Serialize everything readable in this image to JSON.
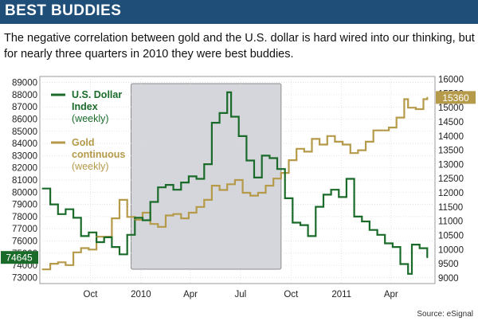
{
  "header": {
    "title": "BEST BUDDIES"
  },
  "subtitle": "The negative correlation between gold and the U.S. dollar is hard wired into our thinking, but for nearly three quarters in 2010 they were best buddies.",
  "source": "Source: eSignal",
  "colors": {
    "dollar": "#1a6b2a",
    "gold": "#b59a4a",
    "header": "#1f4e79",
    "highlight": "#d4d6dc"
  },
  "chart_data": {
    "type": "line",
    "x_tick_labels": [
      "Oct",
      "2010",
      "Apr",
      "Jul",
      "Oct",
      "2011",
      "Apr"
    ],
    "x_tick_dates": [
      "2009-10-01",
      "2010-01-01",
      "2010-04-01",
      "2010-07-01",
      "2010-10-01",
      "2011-01-01",
      "2011-04-01"
    ],
    "highlight_range": [
      "2009-12-14",
      "2010-09-13"
    ],
    "grid": true,
    "legend": "top-left",
    "left_axis": {
      "ticks": [
        73000,
        74000,
        75000,
        76000,
        77000,
        78000,
        79000,
        80000,
        81000,
        82000,
        83000,
        84000,
        85000,
        86000,
        87000,
        88000,
        89000
      ],
      "ylim": [
        72500,
        89500
      ]
    },
    "right_axis": {
      "ticks": [
        9000,
        9500,
        10000,
        10500,
        11000,
        11500,
        12000,
        12500,
        13000,
        13500,
        14000,
        14500,
        15000,
        15500,
        16000
      ],
      "ylim": [
        8800,
        16100
      ]
    },
    "series": [
      {
        "name": "U.S. Dollar Index (weekly)",
        "legend_lines": [
          "U.S. Dollar",
          "Index",
          "(weekly)"
        ],
        "axis": "left",
        "last_value_label": "74645",
        "points": [
          [
            "2009-07-06",
            80300
          ],
          [
            "2009-07-20",
            79000
          ],
          [
            "2009-08-03",
            78200
          ],
          [
            "2009-08-17",
            78600
          ],
          [
            "2009-08-31",
            77900
          ],
          [
            "2009-09-14",
            76400
          ],
          [
            "2009-09-28",
            76700
          ],
          [
            "2009-10-12",
            75900
          ],
          [
            "2009-10-26",
            76300
          ],
          [
            "2009-11-09",
            75500
          ],
          [
            "2009-11-23",
            74900
          ],
          [
            "2009-12-07",
            76500
          ],
          [
            "2009-12-21",
            77900
          ],
          [
            "2010-01-04",
            77700
          ],
          [
            "2010-01-18",
            79200
          ],
          [
            "2010-02-01",
            80400
          ],
          [
            "2010-02-15",
            80600
          ],
          [
            "2010-03-01",
            80200
          ],
          [
            "2010-03-15",
            80800
          ],
          [
            "2010-03-29",
            81300
          ],
          [
            "2010-04-12",
            81100
          ],
          [
            "2010-04-26",
            82300
          ],
          [
            "2010-05-10",
            85700
          ],
          [
            "2010-05-24",
            86500
          ],
          [
            "2010-06-07",
            88200
          ],
          [
            "2010-06-14",
            86200
          ],
          [
            "2010-06-28",
            84600
          ],
          [
            "2010-07-12",
            82600
          ],
          [
            "2010-07-26",
            81200
          ],
          [
            "2010-08-09",
            83000
          ],
          [
            "2010-08-23",
            82800
          ],
          [
            "2010-09-06",
            81900
          ],
          [
            "2010-09-20",
            79500
          ],
          [
            "2010-10-04",
            77500
          ],
          [
            "2010-10-18",
            77300
          ],
          [
            "2010-11-01",
            76400
          ],
          [
            "2010-11-15",
            78800
          ],
          [
            "2010-11-29",
            79800
          ],
          [
            "2010-12-13",
            80200
          ],
          [
            "2010-12-27",
            79600
          ],
          [
            "2011-01-10",
            81100
          ],
          [
            "2011-01-24",
            78000
          ],
          [
            "2011-02-07",
            77600
          ],
          [
            "2011-02-21",
            76900
          ],
          [
            "2011-03-07",
            76500
          ],
          [
            "2011-03-21",
            75800
          ],
          [
            "2011-04-04",
            75500
          ],
          [
            "2011-04-18",
            74100
          ],
          [
            "2011-05-02",
            73300
          ],
          [
            "2011-05-09",
            75700
          ],
          [
            "2011-05-23",
            75400
          ],
          [
            "2011-06-06",
            74645
          ]
        ]
      },
      {
        "name": "Gold continuous (weekly)",
        "legend_lines": [
          "Gold",
          "continuous",
          "(weekly)"
        ],
        "axis": "right",
        "last_value_label": "15360",
        "points": [
          [
            "2009-07-06",
            9300
          ],
          [
            "2009-07-20",
            9500
          ],
          [
            "2009-08-03",
            9550
          ],
          [
            "2009-08-17",
            9450
          ],
          [
            "2009-08-31",
            9900
          ],
          [
            "2009-09-14",
            10050
          ],
          [
            "2009-09-28",
            10000
          ],
          [
            "2009-10-12",
            10450
          ],
          [
            "2009-10-26",
            10450
          ],
          [
            "2009-11-09",
            11100
          ],
          [
            "2009-11-23",
            11750
          ],
          [
            "2009-12-07",
            11150
          ],
          [
            "2009-12-21",
            11050
          ],
          [
            "2010-01-04",
            11300
          ],
          [
            "2010-01-18",
            10900
          ],
          [
            "2010-02-01",
            10800
          ],
          [
            "2010-02-15",
            11200
          ],
          [
            "2010-03-01",
            11250
          ],
          [
            "2010-03-15",
            11100
          ],
          [
            "2010-03-29",
            11300
          ],
          [
            "2010-04-12",
            11500
          ],
          [
            "2010-04-26",
            11750
          ],
          [
            "2010-05-10",
            12250
          ],
          [
            "2010-05-24",
            12100
          ],
          [
            "2010-06-07",
            12300
          ],
          [
            "2010-06-21",
            12450
          ],
          [
            "2010-07-05",
            12000
          ],
          [
            "2010-07-19",
            11900
          ],
          [
            "2010-08-02",
            12000
          ],
          [
            "2010-08-16",
            12250
          ],
          [
            "2010-08-30",
            12500
          ],
          [
            "2010-09-13",
            12700
          ],
          [
            "2010-09-27",
            13150
          ],
          [
            "2010-10-11",
            13550
          ],
          [
            "2010-10-25",
            13450
          ],
          [
            "2010-11-08",
            13900
          ],
          [
            "2010-11-22",
            13700
          ],
          [
            "2010-12-06",
            14000
          ],
          [
            "2010-12-20",
            13800
          ],
          [
            "2011-01-03",
            13700
          ],
          [
            "2011-01-17",
            13400
          ],
          [
            "2011-01-31",
            13500
          ],
          [
            "2011-02-14",
            13800
          ],
          [
            "2011-02-28",
            14200
          ],
          [
            "2011-03-14",
            14200
          ],
          [
            "2011-03-28",
            14300
          ],
          [
            "2011-04-11",
            14650
          ],
          [
            "2011-04-25",
            15300
          ],
          [
            "2011-05-02",
            15000
          ],
          [
            "2011-05-16",
            14950
          ],
          [
            "2011-05-30",
            15300
          ],
          [
            "2011-06-06",
            15360
          ]
        ]
      }
    ]
  }
}
